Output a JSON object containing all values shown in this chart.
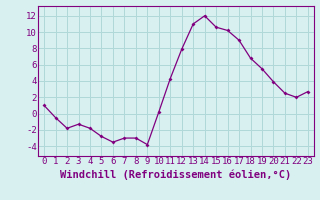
{
  "x": [
    0,
    1,
    2,
    3,
    4,
    5,
    6,
    7,
    8,
    9,
    10,
    11,
    12,
    13,
    14,
    15,
    16,
    17,
    18,
    19,
    20,
    21,
    22,
    23
  ],
  "y": [
    1,
    -0.5,
    -1.8,
    -1.3,
    -1.8,
    -2.8,
    -3.5,
    -3.0,
    -3.0,
    -3.8,
    0.2,
    4.3,
    7.9,
    11.0,
    12.0,
    10.6,
    10.2,
    9.0,
    6.8,
    5.5,
    3.9,
    2.5,
    2.0,
    2.7
  ],
  "line_color": "#800080",
  "marker": "D",
  "marker_size": 2.0,
  "bg_color": "#d8f0f0",
  "grid_color": "#b0d8d8",
  "xlabel": "Windchill (Refroidissement éolien,°C)",
  "yticks": [
    -4,
    -2,
    0,
    2,
    4,
    6,
    8,
    10,
    12
  ],
  "xtick_labels": [
    "0",
    "1",
    "2",
    "3",
    "4",
    "5",
    "6",
    "7",
    "8",
    "9",
    "10",
    "11",
    "12",
    "13",
    "14",
    "15",
    "16",
    "17",
    "18",
    "19",
    "20",
    "21",
    "22",
    "23"
  ],
  "ylim": [
    -5.2,
    13.2
  ],
  "xlim": [
    -0.5,
    23.5
  ],
  "tick_fontsize": 6.5,
  "xlabel_fontsize": 7.5
}
